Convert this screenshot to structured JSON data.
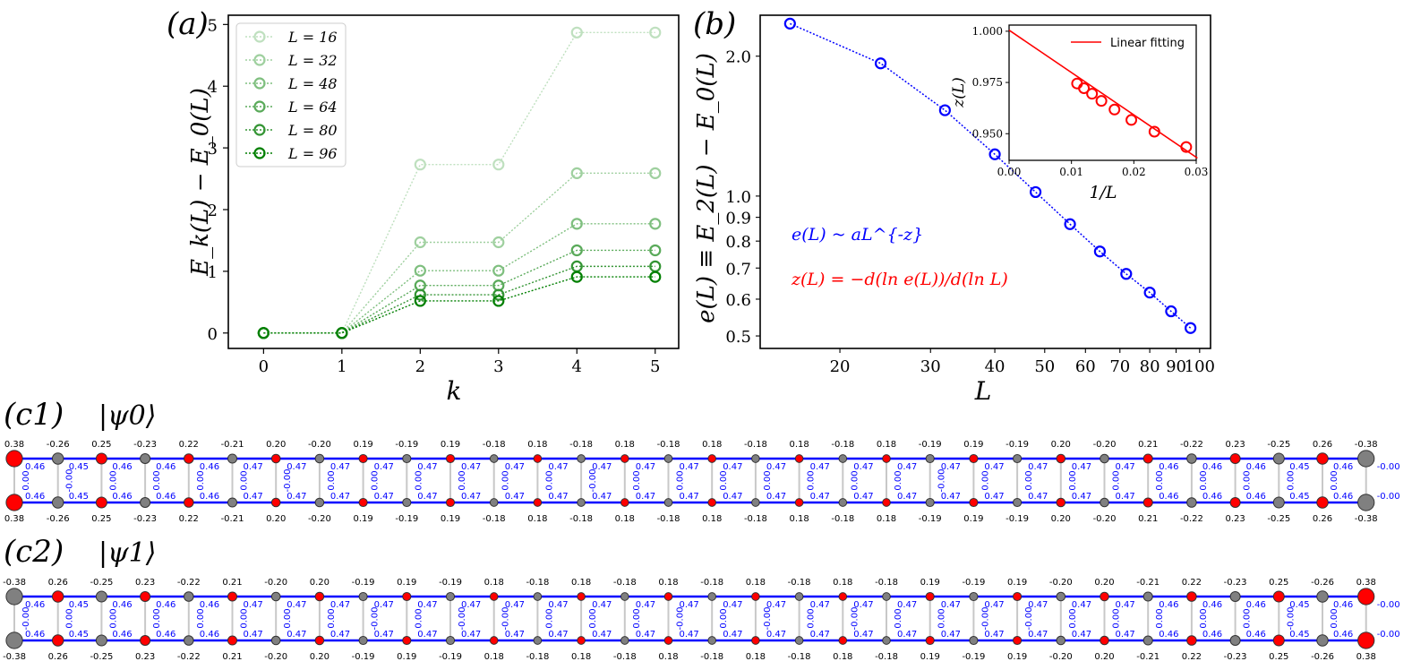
{
  "chart_data": [
    {
      "id": "a",
      "type": "line",
      "panel_label": "(a)",
      "xlabel": "k",
      "ylabel": "E_k(L) − E_0(L)",
      "xlim": [
        -0.45,
        5.3
      ],
      "ylim": [
        -0.25,
        5.15
      ],
      "xticks": [
        "0",
        "1",
        "2",
        "3",
        "4",
        "5"
      ],
      "yticks": [
        "0",
        "1",
        "2",
        "3",
        "4",
        "5"
      ],
      "legend_position": "top-left",
      "x": [
        0,
        1,
        2,
        3,
        4,
        5
      ],
      "series": [
        {
          "name": "L = 16",
          "values": [
            0,
            0,
            2.73,
            2.73,
            4.87,
            4.87
          ],
          "color": "#bfe0bf"
        },
        {
          "name": "L = 32",
          "values": [
            0,
            0,
            1.47,
            1.47,
            2.59,
            2.59
          ],
          "color": "#9fd09f"
        },
        {
          "name": "L = 48",
          "values": [
            0,
            0,
            1.01,
            1.01,
            1.77,
            1.77
          ],
          "color": "#7fbf7f"
        },
        {
          "name": "L = 64",
          "values": [
            0,
            0,
            0.77,
            0.77,
            1.34,
            1.34
          ],
          "color": "#5aaa5a"
        },
        {
          "name": "L = 80",
          "values": [
            0,
            0,
            0.62,
            0.62,
            1.08,
            1.08
          ],
          "color": "#339433"
        },
        {
          "name": "L = 96",
          "values": [
            0,
            0,
            0.52,
            0.52,
            0.91,
            0.91
          ],
          "color": "#007f00"
        }
      ]
    },
    {
      "id": "b",
      "type": "scatter",
      "panel_label": "(b)",
      "xlabel": "L",
      "ylabel": "e(L) ≡ E_2(L) − E_0(L)",
      "xscale": "log",
      "yscale": "log",
      "xlim": [
        14.0,
        105.0
      ],
      "ylim": [
        0.47,
        2.45
      ],
      "xticks": [
        "20",
        "30",
        "40",
        "50",
        "60",
        "70",
        "80",
        "90",
        "100"
      ],
      "yticks": [
        "0.5",
        "0.6",
        "0.7",
        "0.8",
        "0.9",
        "1.0",
        "2.0"
      ],
      "x": [
        16,
        24,
        32,
        40,
        48,
        56,
        64,
        72,
        80,
        88,
        96
      ],
      "values": [
        2.35,
        1.93,
        1.53,
        1.23,
        1.02,
        0.87,
        0.76,
        0.68,
        0.62,
        0.565,
        0.52
      ],
      "color": "#0000ff",
      "annotations": [
        "e(L) ~ aL^{-z}",
        "z(L) = −d(ln e(L))/d(ln L)"
      ],
      "annotation_colors": [
        "#0000ff",
        "#ff0000"
      ]
    },
    {
      "id": "b-inset",
      "type": "scatter",
      "xlabel": "1/L",
      "ylabel": "z(L)",
      "xlim": [
        0.0,
        0.03
      ],
      "ylim": [
        0.937,
        1.003
      ],
      "xticks": [
        "0.00",
        "0.01",
        "0.02",
        "0.03"
      ],
      "yticks": [
        "0.950",
        "0.975",
        "1.000"
      ],
      "x": [
        0.0284,
        0.0233,
        0.0196,
        0.0169,
        0.0148,
        0.0133,
        0.012,
        0.0109
      ],
      "values": [
        0.9435,
        0.951,
        0.9567,
        0.9618,
        0.966,
        0.9695,
        0.9722,
        0.9745
      ],
      "fit_line": {
        "name": "Linear fitting",
        "x": [
          0.0,
          0.0302
        ],
        "values": [
          1.0005,
          0.9381
        ]
      },
      "color": "#ff0000",
      "legend_position": "top-right"
    }
  ],
  "ladders": [
    {
      "id": "c1",
      "panel_label": "(c1)",
      "state_label": "|ψ0⟩",
      "top_sites": [
        "0.38",
        "-0.26",
        "0.25",
        "-0.23",
        "0.22",
        "-0.21",
        "0.20",
        "-0.20",
        "0.19",
        "-0.19",
        "0.19",
        "-0.18",
        "0.18",
        "-0.18",
        "0.18",
        "-0.18",
        "0.18",
        "-0.18",
        "0.18",
        "-0.18",
        "0.18",
        "-0.19",
        "0.19",
        "-0.19",
        "0.20",
        "-0.20",
        "0.21",
        "-0.22",
        "0.23",
        "-0.25",
        "0.26",
        "-0.38"
      ],
      "bottom_sites": [
        "0.38",
        "-0.26",
        "0.25",
        "-0.23",
        "0.22",
        "-0.21",
        "0.20",
        "-0.20",
        "0.19",
        "-0.19",
        "0.19",
        "-0.18",
        "0.18",
        "-0.18",
        "0.18",
        "-0.18",
        "0.18",
        "-0.18",
        "0.18",
        "-0.18",
        "0.18",
        "-0.19",
        "0.19",
        "-0.19",
        "0.20",
        "-0.20",
        "0.21",
        "-0.22",
        "0.23",
        "-0.25",
        "0.26",
        "-0.38"
      ],
      "leg_bonds": [
        "0.46",
        "0.45",
        "0.46",
        "0.46",
        "0.46",
        "0.47",
        "0.47",
        "0.47",
        "0.47",
        "0.47",
        "0.47",
        "0.47",
        "0.47",
        "0.47",
        "0.47",
        "0.47",
        "0.47",
        "0.47",
        "0.47",
        "0.47",
        "0.47",
        "0.47",
        "0.47",
        "0.47",
        "0.47",
        "0.47",
        "0.46",
        "0.46",
        "0.46",
        "0.45",
        "0.46",
        "-0.00"
      ],
      "rung_bonds": [
        "0.00",
        "-0.00",
        "0.00",
        "0.00",
        "0.00",
        "0.00",
        "-0.00",
        "0.00",
        "0.00",
        "0.00",
        "0.00",
        "0.00",
        "0.00",
        "-0.00",
        "0.00",
        "0.00",
        "0.00",
        "0.00",
        "0.00",
        "0.00",
        "0.00",
        "-0.00",
        "0.00",
        "0.00",
        "0.00",
        "0.00",
        "0.00",
        "0.00",
        "0.00",
        "0.00",
        "0.00"
      ],
      "positive_color": "#ff0000",
      "negative_color": "#808080"
    },
    {
      "id": "c2",
      "panel_label": "(c2)",
      "state_label": "|ψ1⟩",
      "top_sites": [
        "-0.38",
        "0.26",
        "-0.25",
        "0.23",
        "-0.22",
        "0.21",
        "-0.20",
        "0.20",
        "-0.19",
        "0.19",
        "-0.19",
        "0.18",
        "-0.18",
        "0.18",
        "-0.18",
        "0.18",
        "-0.18",
        "0.18",
        "-0.18",
        "0.18",
        "-0.18",
        "0.19",
        "-0.19",
        "0.19",
        "-0.20",
        "0.20",
        "-0.21",
        "0.22",
        "-0.23",
        "0.25",
        "-0.26",
        "0.38"
      ],
      "bottom_sites": [
        "-0.38",
        "0.26",
        "-0.25",
        "0.23",
        "-0.22",
        "0.21",
        "-0.20",
        "0.20",
        "-0.19",
        "0.19",
        "-0.19",
        "0.18",
        "-0.18",
        "0.18",
        "-0.18",
        "0.18",
        "-0.18",
        "0.18",
        "-0.18",
        "0.18",
        "-0.18",
        "0.19",
        "-0.19",
        "0.19",
        "-0.20",
        "0.20",
        "-0.21",
        "0.22",
        "-0.23",
        "0.25",
        "-0.26",
        "0.38"
      ],
      "leg_bonds": [
        "0.46",
        "0.45",
        "0.46",
        "0.46",
        "0.46",
        "0.47",
        "0.47",
        "0.47",
        "0.47",
        "0.47",
        "0.47",
        "0.47",
        "0.47",
        "0.47",
        "0.47",
        "0.47",
        "0.47",
        "0.47",
        "0.47",
        "0.47",
        "0.47",
        "0.47",
        "0.47",
        "0.47",
        "0.47",
        "0.47",
        "0.46",
        "0.46",
        "0.46",
        "0.45",
        "0.46",
        "-0.00"
      ],
      "rung_bonds": [
        "-0.00",
        "0.00",
        "0.00",
        "0.00",
        "0.00",
        "0.00",
        "0.00",
        "0.00",
        "-0.00",
        "0.00",
        "-0.00",
        "-0.00",
        "0.00",
        "0.00",
        "0.00",
        "-0.00",
        "0.00",
        "-0.00",
        "0.00",
        "-0.00",
        "0.00",
        "0.00",
        "-0.00",
        "-0.00",
        "0.00",
        "0.00",
        "0.00",
        "0.00",
        "0.00",
        "-0.00",
        "0.00"
      ],
      "positive_color": "#ff0000",
      "negative_color": "#808080"
    }
  ]
}
